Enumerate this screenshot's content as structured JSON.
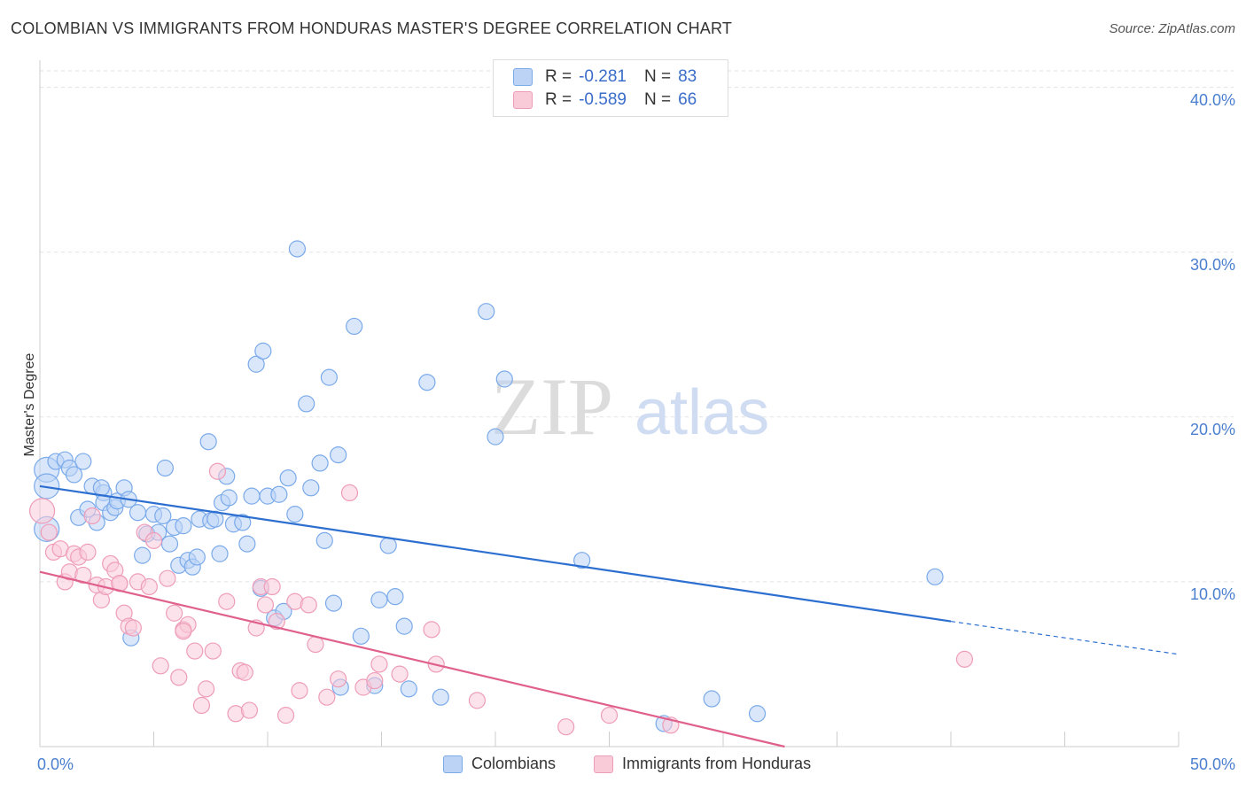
{
  "title": "COLOMBIAN VS IMMIGRANTS FROM HONDURAS MASTER'S DEGREE CORRELATION CHART",
  "source": "Source: ZipAtlas.com",
  "watermark": {
    "zip": "ZIP",
    "atlas": "atlas"
  },
  "legend": {
    "r_label": "R =",
    "n_label": "N =",
    "rows": [
      {
        "r": "-0.281",
        "n": "83"
      },
      {
        "r": "-0.589",
        "n": "66"
      }
    ]
  },
  "chart_data": {
    "type": "scatter",
    "xlabel": "",
    "ylabel": "Master's Degree",
    "xlim": [
      0,
      50
    ],
    "ylim": [
      0,
      41
    ],
    "x_tick_labels": [
      "0.0%",
      "50.0%"
    ],
    "y_ticks": [
      10,
      20,
      30,
      40
    ],
    "y_tick_labels": [
      "10.0%",
      "20.0%",
      "30.0%",
      "40.0%"
    ],
    "grid": true,
    "legend_position": "top-center",
    "series": [
      {
        "name": "Colombians",
        "color": "#7aaaea",
        "fill": "#bcd3f5",
        "line_color": "#2d6fd0",
        "trend": {
          "x0": 0,
          "y0": 15.8,
          "x1": 40,
          "y1": 7.6,
          "dash_to_x": 50,
          "dash_to_y": 5.6
        },
        "points": [
          [
            0.3,
            16.8
          ],
          [
            0.3,
            15.8
          ],
          [
            0.3,
            13.2
          ],
          [
            0.7,
            17.3
          ],
          [
            1.1,
            17.4
          ],
          [
            1.3,
            16.9
          ],
          [
            1.5,
            16.5
          ],
          [
            1.9,
            17.3
          ],
          [
            1.7,
            13.9
          ],
          [
            2.1,
            14.4
          ],
          [
            2.3,
            15.8
          ],
          [
            2.5,
            13.6
          ],
          [
            2.8,
            15.4
          ],
          [
            2.8,
            14.8
          ],
          [
            3.1,
            14.2
          ],
          [
            3.3,
            14.5
          ],
          [
            3.4,
            14.9
          ],
          [
            3.7,
            15.7
          ],
          [
            3.9,
            15.0
          ],
          [
            4.3,
            14.2
          ],
          [
            4.5,
            11.6
          ],
          [
            4.7,
            12.9
          ],
          [
            5.0,
            14.1
          ],
          [
            5.2,
            13.0
          ],
          [
            5.4,
            14.0
          ],
          [
            5.5,
            16.9
          ],
          [
            5.7,
            12.3
          ],
          [
            5.9,
            13.3
          ],
          [
            6.1,
            11.0
          ],
          [
            6.3,
            13.4
          ],
          [
            6.5,
            11.3
          ],
          [
            6.7,
            10.9
          ],
          [
            6.9,
            11.5
          ],
          [
            7.0,
            13.8
          ],
          [
            7.4,
            18.5
          ],
          [
            7.5,
            13.7
          ],
          [
            7.7,
            13.8
          ],
          [
            7.9,
            11.7
          ],
          [
            8.0,
            14.8
          ],
          [
            8.2,
            16.4
          ],
          [
            8.3,
            15.1
          ],
          [
            8.5,
            13.5
          ],
          [
            8.9,
            13.6
          ],
          [
            9.1,
            12.3
          ],
          [
            9.3,
            15.2
          ],
          [
            9.5,
            23.2
          ],
          [
            9.7,
            9.6
          ],
          [
            9.8,
            24.0
          ],
          [
            10.0,
            15.2
          ],
          [
            10.3,
            7.8
          ],
          [
            10.5,
            15.3
          ],
          [
            10.7,
            8.2
          ],
          [
            10.9,
            16.3
          ],
          [
            11.2,
            14.1
          ],
          [
            11.3,
            30.2
          ],
          [
            11.7,
            20.8
          ],
          [
            11.9,
            15.7
          ],
          [
            12.3,
            17.2
          ],
          [
            12.5,
            12.5
          ],
          [
            12.7,
            22.4
          ],
          [
            12.9,
            8.7
          ],
          [
            13.1,
            17.7
          ],
          [
            13.2,
            3.6
          ],
          [
            13.8,
            25.5
          ],
          [
            14.1,
            6.7
          ],
          [
            14.7,
            3.7
          ],
          [
            14.9,
            8.9
          ],
          [
            15.3,
            12.2
          ],
          [
            15.6,
            9.1
          ],
          [
            16.0,
            7.3
          ],
          [
            16.2,
            3.5
          ],
          [
            17.0,
            22.1
          ],
          [
            17.6,
            3.0
          ],
          [
            19.6,
            26.4
          ],
          [
            20.0,
            18.8
          ],
          [
            20.4,
            22.3
          ],
          [
            23.8,
            11.3
          ],
          [
            27.4,
            1.4
          ],
          [
            29.5,
            2.9
          ],
          [
            31.5,
            2.0
          ],
          [
            39.3,
            10.3
          ],
          [
            4.0,
            6.6
          ],
          [
            2.7,
            15.7
          ]
        ]
      },
      {
        "name": "Immigrants from Honduras",
        "color": "#ee9db8",
        "fill": "#f9cbd9",
        "line_color": "#e0608d",
        "trend": {
          "x0": 0,
          "y0": 10.6,
          "x1": 32.7,
          "y1": 0.0
        },
        "points": [
          [
            0.1,
            14.3
          ],
          [
            0.4,
            13.0
          ],
          [
            0.6,
            11.8
          ],
          [
            0.9,
            12.0
          ],
          [
            1.1,
            10.0
          ],
          [
            1.3,
            10.6
          ],
          [
            1.5,
            11.7
          ],
          [
            1.7,
            11.5
          ],
          [
            1.9,
            10.4
          ],
          [
            2.1,
            11.8
          ],
          [
            2.3,
            14.0
          ],
          [
            2.5,
            9.8
          ],
          [
            2.7,
            8.9
          ],
          [
            2.9,
            9.7
          ],
          [
            3.1,
            11.1
          ],
          [
            3.3,
            10.7
          ],
          [
            3.5,
            9.9
          ],
          [
            3.7,
            8.1
          ],
          [
            3.9,
            7.3
          ],
          [
            4.1,
            7.2
          ],
          [
            4.3,
            10.0
          ],
          [
            4.6,
            13.0
          ],
          [
            4.8,
            9.7
          ],
          [
            5.0,
            12.5
          ],
          [
            5.3,
            4.9
          ],
          [
            5.6,
            10.2
          ],
          [
            5.9,
            8.1
          ],
          [
            6.1,
            4.2
          ],
          [
            6.3,
            7.1
          ],
          [
            6.5,
            7.4
          ],
          [
            6.8,
            5.8
          ],
          [
            7.1,
            2.5
          ],
          [
            7.3,
            3.5
          ],
          [
            7.6,
            5.8
          ],
          [
            7.8,
            16.7
          ],
          [
            8.2,
            8.8
          ],
          [
            8.6,
            2.0
          ],
          [
            8.8,
            4.6
          ],
          [
            9.0,
            4.5
          ],
          [
            9.2,
            2.2
          ],
          [
            9.5,
            7.2
          ],
          [
            9.7,
            9.7
          ],
          [
            9.9,
            8.6
          ],
          [
            10.2,
            9.7
          ],
          [
            10.4,
            7.6
          ],
          [
            10.8,
            1.9
          ],
          [
            11.2,
            8.8
          ],
          [
            11.4,
            3.4
          ],
          [
            11.8,
            8.6
          ],
          [
            12.1,
            6.2
          ],
          [
            12.6,
            3.0
          ],
          [
            13.1,
            4.1
          ],
          [
            13.6,
            15.4
          ],
          [
            14.2,
            3.6
          ],
          [
            14.7,
            4.0
          ],
          [
            14.9,
            5.0
          ],
          [
            15.8,
            4.4
          ],
          [
            17.2,
            7.1
          ],
          [
            17.4,
            5.0
          ],
          [
            19.2,
            2.8
          ],
          [
            23.1,
            1.2
          ],
          [
            25.0,
            1.9
          ],
          [
            27.7,
            1.3
          ],
          [
            40.6,
            5.3
          ],
          [
            3.5,
            9.9
          ],
          [
            6.3,
            7.0
          ]
        ]
      }
    ]
  }
}
